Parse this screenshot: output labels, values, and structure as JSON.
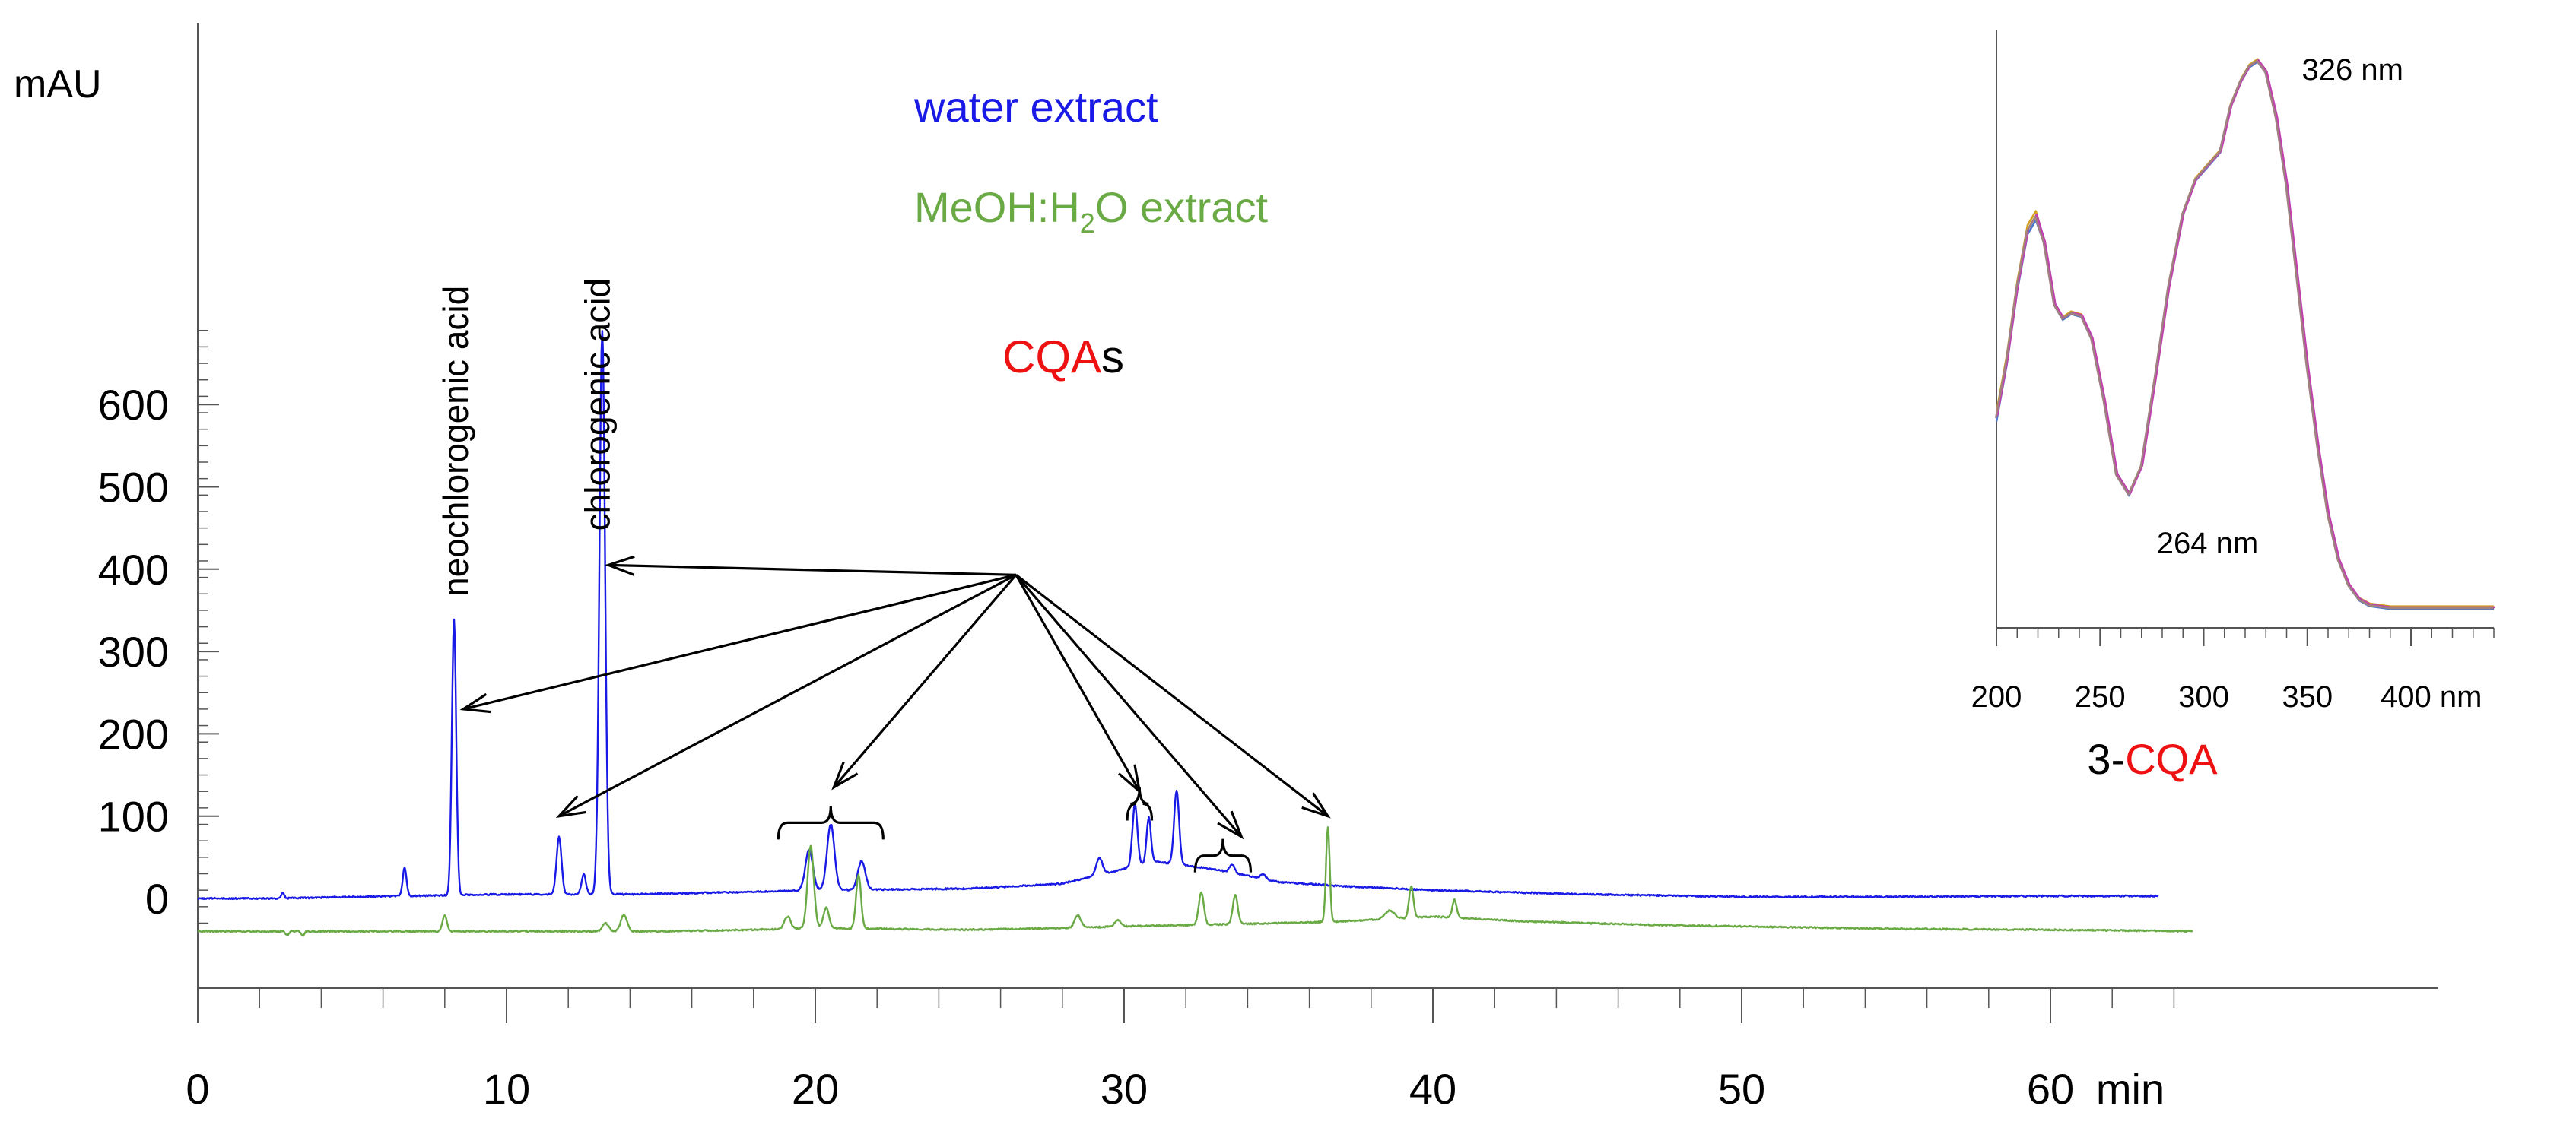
{
  "colors": {
    "water": "#1a1ae6",
    "meoh": "#6aaa45",
    "cqa": "#ee1111",
    "axis": "#555555",
    "text": "#000000",
    "spectra": [
      "#d4a020",
      "#4a78c8",
      "#c040b0",
      "#a08080"
    ]
  },
  "chart_data": [
    {
      "type": "line",
      "ylabel": "mAU",
      "xunit": "min",
      "xlim": [
        0,
        65
      ],
      "ylim": [
        -50,
        700
      ],
      "xticks": [
        0,
        10,
        20,
        30,
        40,
        50,
        60
      ],
      "xtick_labels": [
        "0",
        "10",
        "20",
        "30",
        "40",
        "50",
        "60"
      ],
      "yticks": [
        0,
        100,
        200,
        300,
        400,
        500,
        600
      ],
      "ytick_labels": [
        "0",
        "100",
        "200",
        "300",
        "400",
        "500",
        "600"
      ],
      "legend": [
        {
          "text": "water extract",
          "series": "water"
        },
        {
          "text_main": "MeOH:H",
          "text_sub": "2",
          "text_rest": "O extract",
          "series": "meoh"
        }
      ],
      "peak_labels": [
        {
          "text": "neochlorogenic acid",
          "x": 8.3,
          "y": 350
        },
        {
          "text": "chlorogenic acid",
          "x": 12.9,
          "y": 430
        }
      ],
      "annotation": {
        "cqa_text": "CQA",
        "suffix_text": "s",
        "anchor": [
          26.5,
          430
        ],
        "arrow_targets": [
          [
            8.6,
            230
          ],
          [
            11.7,
            100
          ],
          [
            13.3,
            405
          ],
          [
            20.6,
            135
          ],
          [
            30.5,
            130
          ],
          [
            33.8,
            75
          ],
          [
            36.6,
            100
          ]
        ],
        "braces": [
          {
            "x1": 18.8,
            "x2": 22.2,
            "y": 92
          },
          {
            "x1": 30.1,
            "x2": 30.9,
            "y": 115
          },
          {
            "x1": 32.3,
            "x2": 34.1,
            "y": 52
          }
        ]
      },
      "series": [
        {
          "name": "water extract",
          "color_key": "water",
          "baseline": [
            [
              0,
              0
            ],
            [
              2.6,
              0
            ],
            [
              5,
              2
            ],
            [
              10,
              5
            ],
            [
              14,
              5
            ],
            [
              18,
              8
            ],
            [
              20,
              10
            ],
            [
              25,
              12
            ],
            [
              28,
              18
            ],
            [
              31,
              45
            ],
            [
              33,
              35
            ],
            [
              35,
              20
            ],
            [
              37,
              15
            ],
            [
              40,
              10
            ],
            [
              45,
              5
            ],
            [
              50,
              2
            ],
            [
              55,
              2
            ],
            [
              60,
              3
            ],
            [
              65,
              3
            ]
          ],
          "peaks": [
            [
              2.75,
              7,
              0.05
            ],
            [
              6.7,
              35,
              0.06
            ],
            [
              8.3,
              335,
              0.07
            ],
            [
              11.7,
              70,
              0.08
            ],
            [
              12.5,
              25,
              0.07
            ],
            [
              13.1,
              685,
              0.09
            ],
            [
              19.8,
              50,
              0.12
            ],
            [
              20.5,
              80,
              0.12
            ],
            [
              21.5,
              35,
              0.12
            ],
            [
              29.2,
              20,
              0.1
            ],
            [
              30.35,
              75,
              0.08
            ],
            [
              30.8,
              55,
              0.07
            ],
            [
              31.7,
              90,
              0.08
            ],
            [
              33.5,
              10,
              0.08
            ],
            [
              34.5,
              6,
              0.08
            ]
          ]
        },
        {
          "name": "MeOH:H2O extract",
          "color_key": "meoh",
          "baseline": [
            [
              0,
              -40
            ],
            [
              5,
              -40
            ],
            [
              10,
              -40
            ],
            [
              15,
              -40
            ],
            [
              18,
              -38
            ],
            [
              20,
              -36
            ],
            [
              25,
              -38
            ],
            [
              28,
              -36
            ],
            [
              30,
              -34
            ],
            [
              35,
              -30
            ],
            [
              37,
              -28
            ],
            [
              40,
              -22
            ],
            [
              43,
              -28
            ],
            [
              47,
              -32
            ],
            [
              50,
              -34
            ],
            [
              55,
              -37
            ],
            [
              60,
              -38
            ],
            [
              65,
              -40
            ]
          ],
          "peaks": [
            [
              2.9,
              -5,
              0.05
            ],
            [
              3.4,
              -6,
              0.05
            ],
            [
              8.0,
              20,
              0.07
            ],
            [
              13.2,
              10,
              0.1
            ],
            [
              13.8,
              20,
              0.1
            ],
            [
              19.1,
              15,
              0.1
            ],
            [
              19.85,
              100,
              0.1
            ],
            [
              20.35,
              25,
              0.09
            ],
            [
              21.4,
              65,
              0.08
            ],
            [
              28.5,
              15,
              0.1
            ],
            [
              29.8,
              8,
              0.1
            ],
            [
              32.5,
              40,
              0.08
            ],
            [
              33.6,
              35,
              0.08
            ],
            [
              36.6,
              115,
              0.06
            ],
            [
              38.6,
              10,
              0.15
            ],
            [
              39.3,
              38,
              0.07
            ],
            [
              40.7,
              22,
              0.07
            ]
          ]
        }
      ]
    },
    {
      "type": "line",
      "title": "3-CQA",
      "title_prefix": "3-",
      "title_cqa": "CQA",
      "xunit": "nm",
      "xlim": [
        200,
        440
      ],
      "ylim": [
        0,
        1
      ],
      "xticks": [
        200,
        250,
        300,
        350,
        400
      ],
      "xtick_labels": [
        "200",
        "250",
        "300",
        "350",
        "400 nm"
      ],
      "annotations": [
        {
          "text": "326 nm",
          "x": 340,
          "y": 0.985
        },
        {
          "text": "264 nm",
          "x": 270,
          "y": 0.15
        }
      ],
      "series": [
        {
          "values": [
            [
              200,
              0.37
            ],
            [
              205,
              0.47
            ],
            [
              210,
              0.6
            ],
            [
              215,
              0.7
            ],
            [
              219,
              0.725
            ],
            [
              223,
              0.68
            ],
            [
              228,
              0.57
            ],
            [
              232,
              0.545
            ],
            [
              236,
              0.555
            ],
            [
              241,
              0.55
            ],
            [
              246,
              0.51
            ],
            [
              252,
              0.4
            ],
            [
              258,
              0.27
            ],
            [
              264,
              0.235
            ],
            [
              270,
              0.285
            ],
            [
              277,
              0.45
            ],
            [
              283,
              0.6
            ],
            [
              290,
              0.73
            ],
            [
              296,
              0.79
            ],
            [
              302,
              0.815
            ],
            [
              308,
              0.84
            ],
            [
              313,
              0.92
            ],
            [
              318,
              0.965
            ],
            [
              322,
              0.99
            ],
            [
              326,
              1.0
            ],
            [
              330,
              0.98
            ],
            [
              335,
              0.9
            ],
            [
              340,
              0.78
            ],
            [
              345,
              0.62
            ],
            [
              350,
              0.46
            ],
            [
              355,
              0.32
            ],
            [
              360,
              0.2
            ],
            [
              365,
              0.12
            ],
            [
              370,
              0.075
            ],
            [
              375,
              0.05
            ],
            [
              380,
              0.04
            ],
            [
              390,
              0.035
            ],
            [
              400,
              0.035
            ],
            [
              420,
              0.035
            ],
            [
              440,
              0.035
            ]
          ]
        }
      ]
    }
  ]
}
